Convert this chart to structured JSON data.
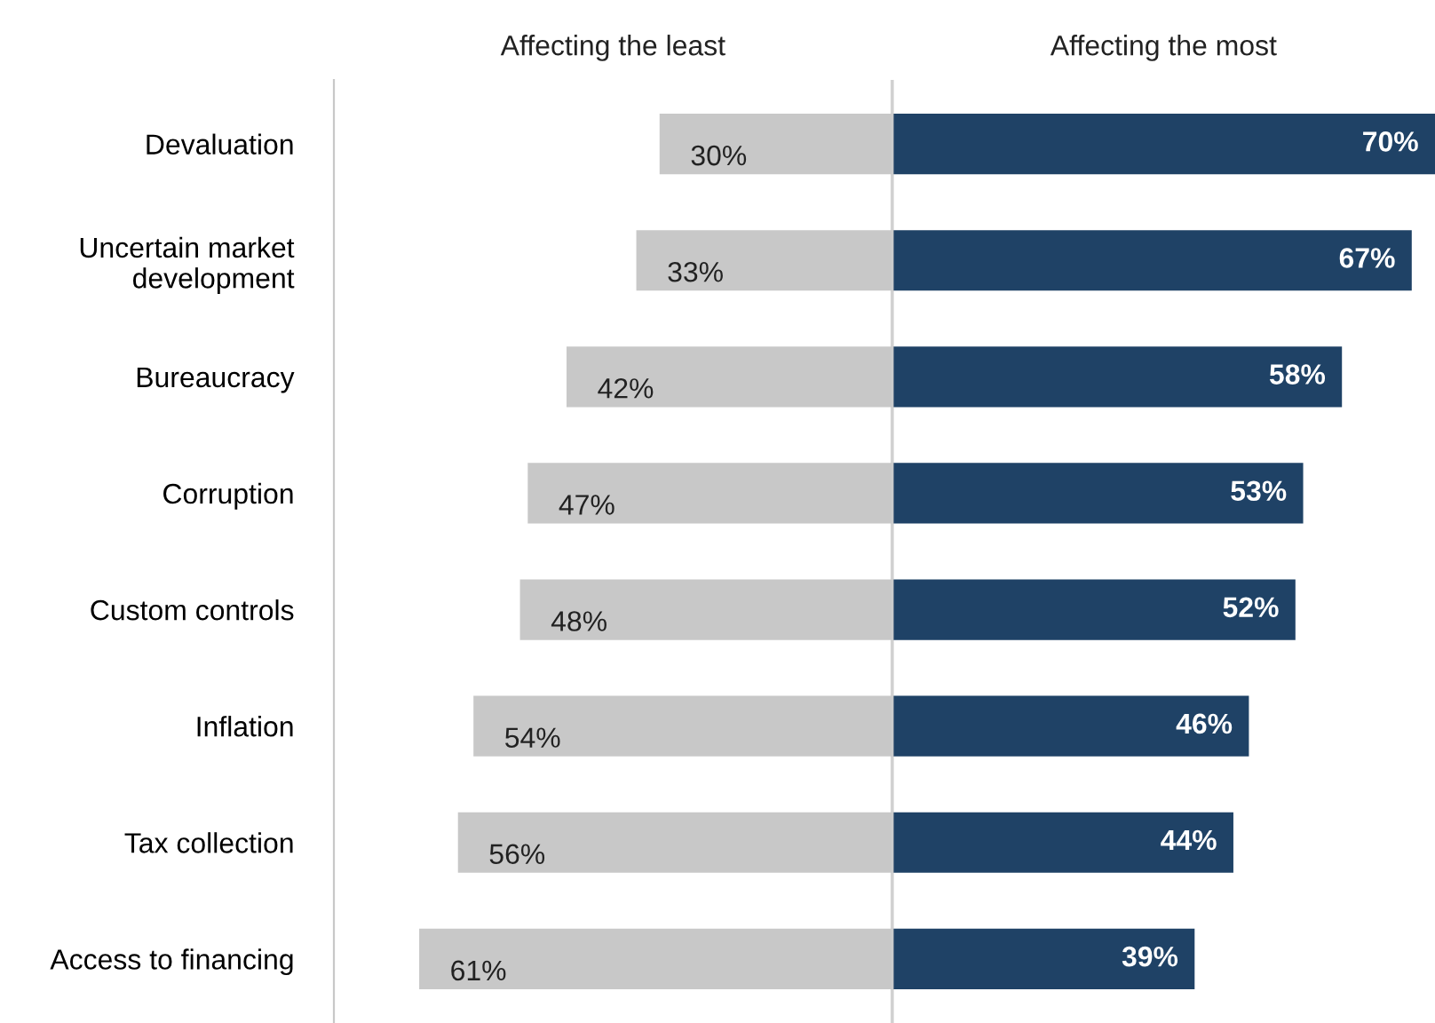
{
  "chart_data": [
    {
      "type": "bar",
      "orientation": "horizontal",
      "title": "Affecting the least",
      "legend": false,
      "grid": false,
      "tick_labels": "y",
      "xlim": [
        72,
        0
      ],
      "categories": [
        "Devaluation",
        "Uncertain market\ndevelopment",
        "Bureaucracy",
        "Corruption",
        "Custom controls",
        "Inflation",
        "Tax collection",
        "Access to financing"
      ],
      "series": [
        {
          "color": "#c8c8c8",
          "values": [
            30,
            33,
            42,
            47,
            48,
            54,
            56,
            61
          ],
          "value_labels": [
            "30%",
            "33%",
            "42%",
            "47%",
            "48%",
            "54%",
            "56%",
            "61%"
          ]
        }
      ]
    },
    {
      "type": "bar",
      "orientation": "horizontal",
      "title": "Affecting the most",
      "legend": false,
      "grid": false,
      "tick_labels": false,
      "xlim": [
        0,
        70
      ],
      "categories": [
        null,
        null,
        null,
        null,
        null,
        null,
        null,
        null
      ],
      "series": [
        {
          "color": "#1f4266",
          "values": [
            70,
            67,
            58,
            53,
            52,
            46,
            44,
            39
          ],
          "value_labels": [
            "70%",
            "67%",
            "58%",
            "53%",
            "52%",
            "46%",
            "44%",
            "39%"
          ]
        }
      ]
    }
  ]
}
